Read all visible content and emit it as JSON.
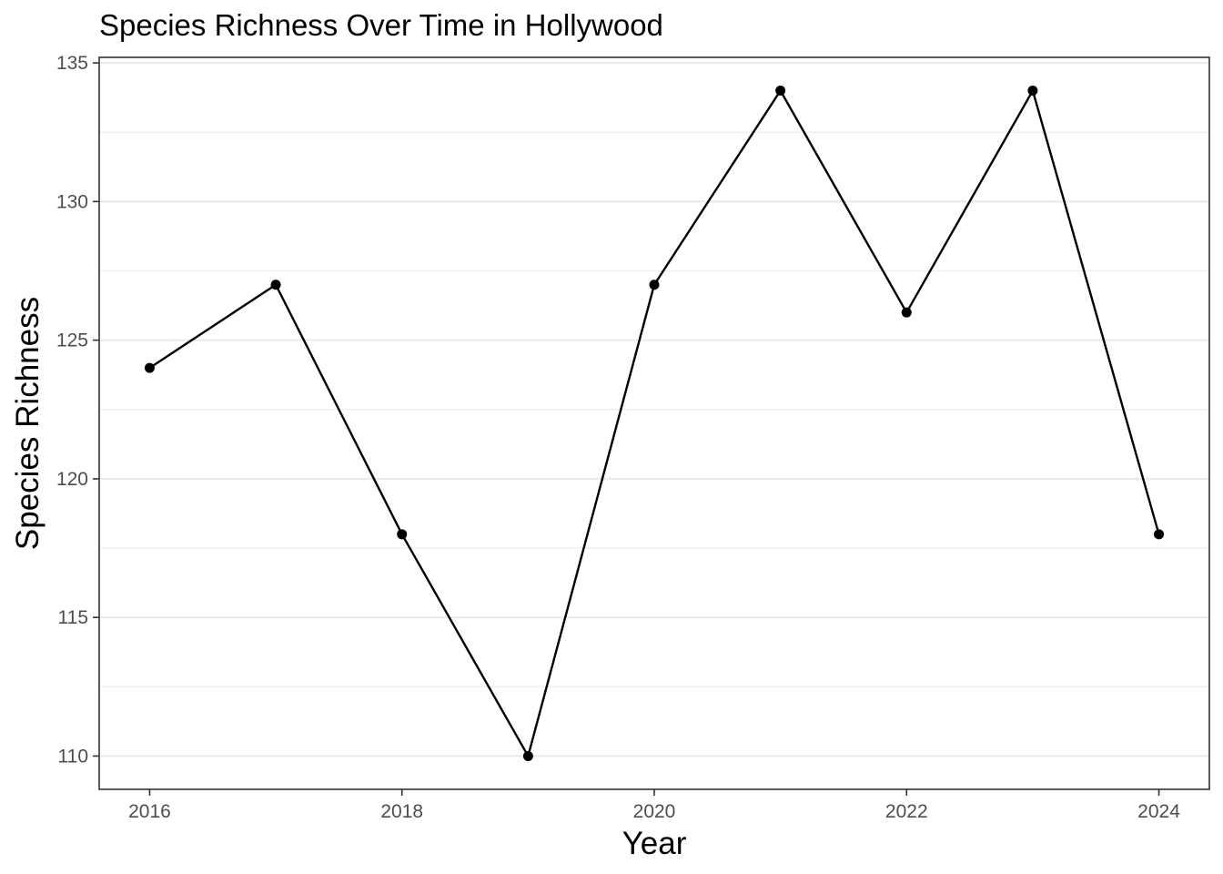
{
  "chart_data": {
    "type": "line",
    "title": "Species Richness Over Time in Hollywood",
    "xlabel": "Year",
    "ylabel": "Species Richness",
    "x": [
      2016,
      2017,
      2018,
      2019,
      2020,
      2021,
      2022,
      2023,
      2024
    ],
    "series": [
      {
        "values": [
          124,
          127,
          118,
          110,
          127,
          134,
          126,
          134,
          118
        ]
      }
    ],
    "xlim": [
      2015.6,
      2024.4
    ],
    "ylim": [
      108.8,
      135.2
    ],
    "x_ticks": [
      2016,
      2018,
      2020,
      2022,
      2024
    ],
    "y_ticks": [
      110,
      115,
      120,
      125,
      130,
      135
    ],
    "y_minor_ticks": [
      112.5,
      117.5,
      122.5,
      127.5,
      132.5
    ],
    "grid": "horizontal",
    "legend": "none",
    "colors": {
      "line": "#000000",
      "point": "#000000",
      "grid": "#ebebeb",
      "border": "#333333",
      "tick_text": "#4d4d4d"
    }
  }
}
